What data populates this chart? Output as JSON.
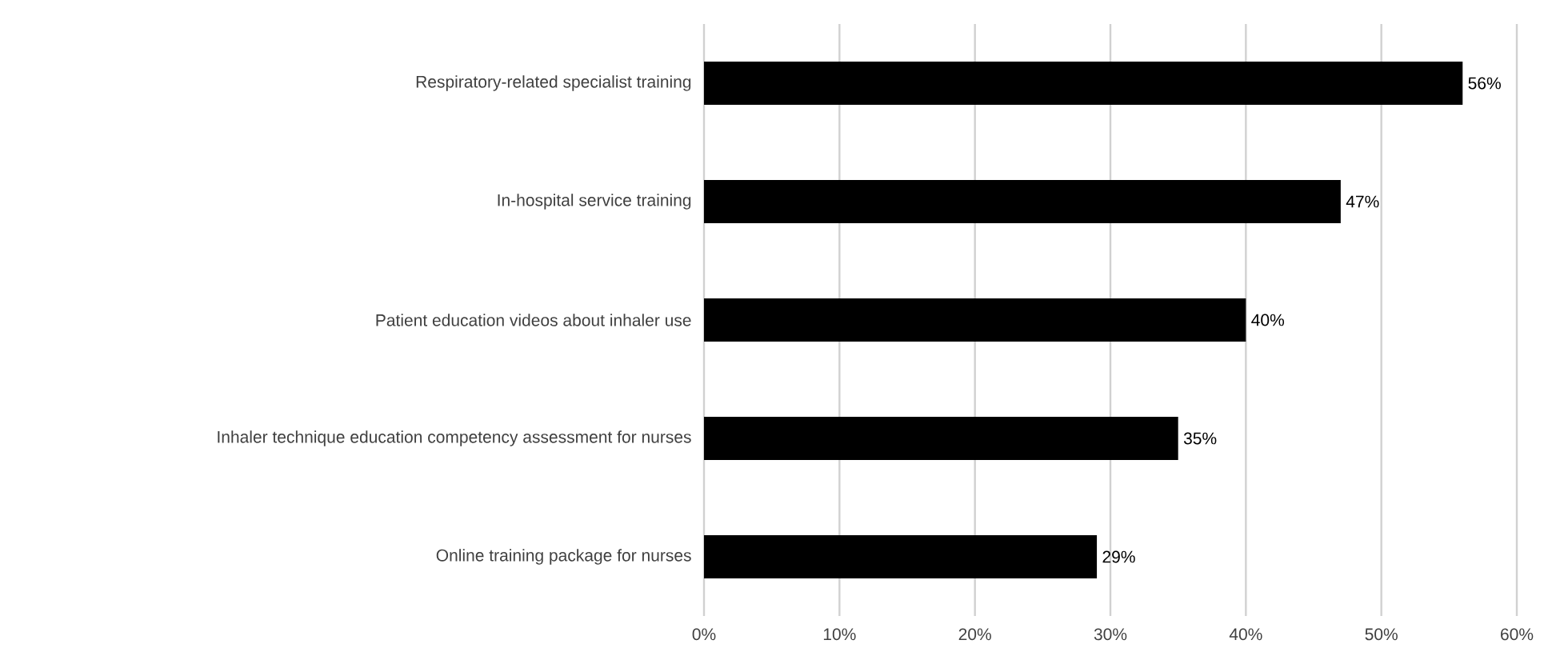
{
  "chart_data": {
    "type": "bar",
    "orientation": "horizontal",
    "categories": [
      "Respiratory-related specialist training",
      "In-hospital service training",
      "Patient education videos about inhaler use",
      "Inhaler technique education competency assessment for nurses",
      "Online training package for nurses"
    ],
    "values": [
      56,
      47,
      40,
      35,
      29
    ],
    "value_labels": [
      "56%",
      "47%",
      "40%",
      "35%",
      "29%"
    ],
    "color": "#000000",
    "xlim": [
      0,
      60
    ],
    "xticks": [
      {
        "value": 0,
        "label": "0%"
      },
      {
        "value": 10,
        "label": "10%"
      },
      {
        "value": 20,
        "label": "20%"
      },
      {
        "value": 30,
        "label": "30%"
      },
      {
        "value": 40,
        "label": "40%"
      },
      {
        "value": 50,
        "label": "50%"
      },
      {
        "value": 60,
        "label": "60%"
      }
    ],
    "grid": "x"
  }
}
